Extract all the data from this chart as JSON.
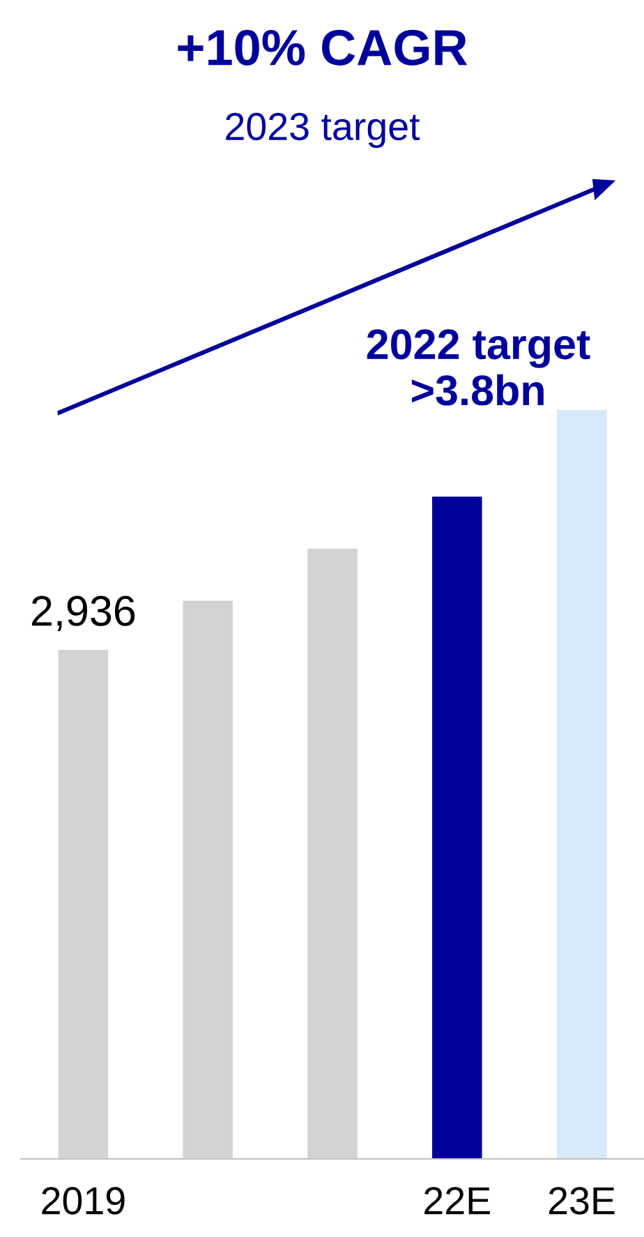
{
  "chart_data": {
    "type": "bar",
    "title": "+10% CAGR",
    "subtitle": "2023 target",
    "categories": [
      "2019",
      null,
      null,
      "22E",
      "23E"
    ],
    "values": [
      2936,
      3220,
      3520,
      3820,
      4320
    ],
    "colors": [
      "#d3d3d3",
      "#d3d3d3",
      "#d3d3d3",
      "#00009b",
      "#d6e8fa"
    ],
    "value_labels": [
      "2,936",
      null,
      null,
      null,
      null
    ],
    "annotations": [
      "2022 target\n>3.8bn"
    ]
  }
}
